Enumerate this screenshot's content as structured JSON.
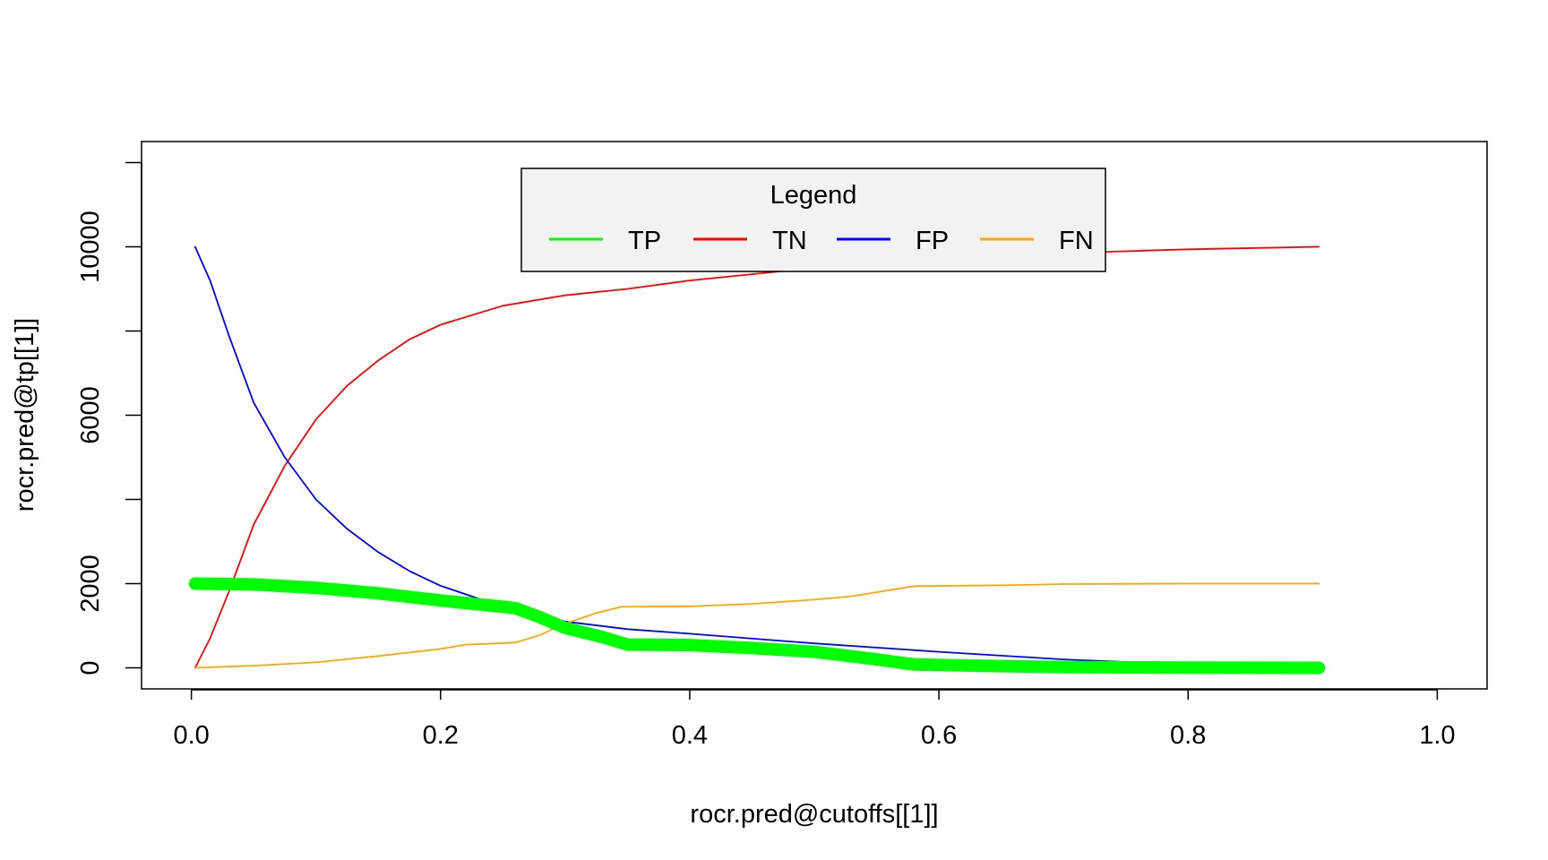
{
  "chart_data": {
    "type": "line",
    "xlabel": "rocr.pred@cutoffs[[1]]",
    "ylabel": "rocr.pred@tp[[1]]",
    "xlim": [
      -0.04,
      1.04
    ],
    "ylim": [
      -500,
      12500
    ],
    "xticks": [
      "0.0",
      "0.2",
      "0.4",
      "0.6",
      "0.8",
      "1.0"
    ],
    "xtick_values": [
      0,
      0.2,
      0.4,
      0.6,
      0.8,
      1.0
    ],
    "yticks": [
      "0",
      "2000",
      "6000",
      "10000"
    ],
    "ytick_values": [
      0,
      2000,
      6000,
      10000
    ],
    "yminor_tick_values": [
      4000,
      8000,
      12000
    ],
    "grid": false,
    "legend": {
      "title": "Legend",
      "placement": "top-center",
      "entries": [
        "TP",
        "TN",
        "FP",
        "FN"
      ]
    },
    "series": [
      {
        "name": "TP",
        "color": "#00ff00",
        "style": "thick-line-with-circles",
        "x": [
          0.003,
          0.05,
          0.1,
          0.15,
          0.2,
          0.25,
          0.26,
          0.28,
          0.3,
          0.33,
          0.35,
          0.4,
          0.45,
          0.5,
          0.55,
          0.58,
          0.65,
          0.7,
          0.75,
          0.8,
          0.85,
          0.9,
          0.905
        ],
        "y": [
          2000,
          1980,
          1900,
          1770,
          1600,
          1450,
          1420,
          1200,
          950,
          730,
          550,
          540,
          470,
          380,
          200,
          80,
          40,
          20,
          10,
          5,
          2,
          1,
          0
        ],
        "circle_x": [
          0.86,
          0.865,
          0.87,
          0.875,
          0.88,
          0.885,
          0.89,
          0.895,
          0.9,
          0.905
        ]
      },
      {
        "name": "TN",
        "color": "#ff0000",
        "style": "line",
        "x": [
          0.003,
          0.015,
          0.03,
          0.05,
          0.075,
          0.1,
          0.125,
          0.15,
          0.175,
          0.2,
          0.25,
          0.3,
          0.35,
          0.4,
          0.45,
          0.5,
          0.55,
          0.6,
          0.7,
          0.8,
          0.905
        ],
        "y": [
          0,
          700,
          1800,
          3400,
          4800,
          5900,
          6700,
          7300,
          7800,
          8150,
          8600,
          8850,
          9000,
          9200,
          9350,
          9500,
          9620,
          9720,
          9850,
          9940,
          10000
        ]
      },
      {
        "name": "FP",
        "color": "#0000ff",
        "style": "line",
        "x": [
          0.003,
          0.015,
          0.03,
          0.05,
          0.075,
          0.1,
          0.125,
          0.15,
          0.175,
          0.2,
          0.25,
          0.3,
          0.35,
          0.4,
          0.5,
          0.6,
          0.7,
          0.8,
          0.9,
          0.905
        ],
        "y": [
          10000,
          9200,
          7900,
          6300,
          5000,
          4000,
          3300,
          2750,
          2300,
          1950,
          1450,
          1100,
          920,
          810,
          580,
          380,
          200,
          80,
          10,
          0
        ]
      },
      {
        "name": "FN",
        "color": "#ffa500",
        "style": "line",
        "x": [
          0.003,
          0.05,
          0.1,
          0.15,
          0.2,
          0.22,
          0.26,
          0.28,
          0.3,
          0.325,
          0.345,
          0.4,
          0.45,
          0.5,
          0.53,
          0.58,
          0.65,
          0.7,
          0.8,
          0.905
        ],
        "y": [
          0,
          50,
          130,
          280,
          450,
          550,
          600,
          780,
          1050,
          1300,
          1450,
          1460,
          1520,
          1620,
          1700,
          1940,
          1960,
          1990,
          2000,
          2000
        ]
      }
    ]
  }
}
